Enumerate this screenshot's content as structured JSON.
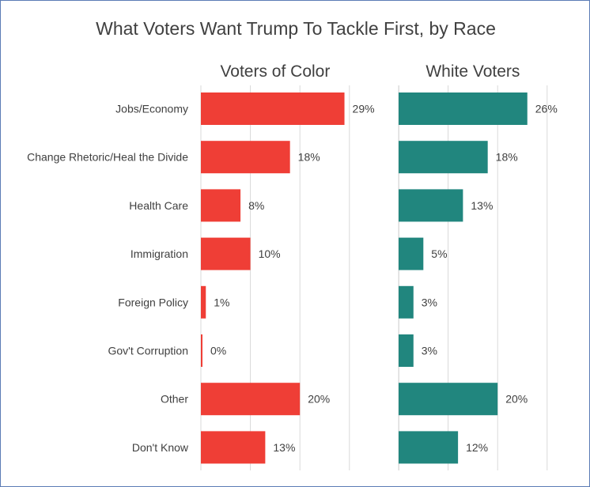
{
  "chart_data": {
    "type": "bar",
    "orientation": "horizontal",
    "title": "What Voters Want Trump To Tackle First, by Race",
    "categories": [
      "Jobs/Economy",
      "Change Rhetoric/Heal the Divide",
      "Health Care",
      "Immigration",
      "Foreign Policy",
      "Gov't Corruption",
      "Other",
      "Don't Know"
    ],
    "series": [
      {
        "name": "Voters of Color",
        "values": [
          29,
          18,
          8,
          10,
          1,
          0,
          20,
          13
        ],
        "labels": [
          "29%",
          "18%",
          "8%",
          "10%",
          "1%",
          "0%",
          "20%",
          "13%"
        ],
        "color": "#ef3e36"
      },
      {
        "name": "White Voters",
        "values": [
          26,
          18,
          13,
          5,
          3,
          3,
          20,
          12
        ],
        "labels": [
          "26%",
          "18%",
          "13%",
          "5%",
          "3%",
          "3%",
          "20%",
          "12%"
        ],
        "color": "#21867e"
      }
    ],
    "xlim": [
      0,
      40
    ],
    "gridlines": true,
    "legend": "panel titles"
  }
}
